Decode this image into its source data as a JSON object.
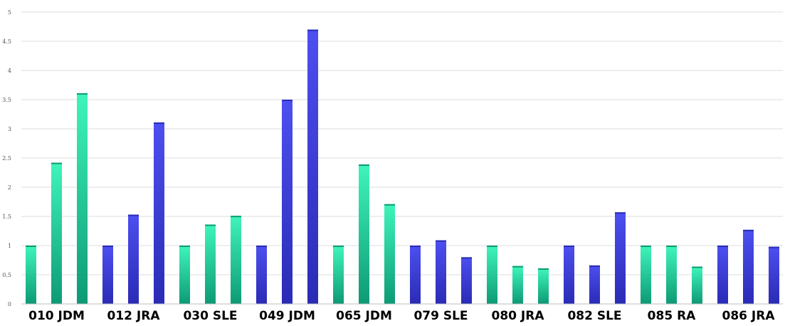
{
  "chart_data": {
    "type": "bar",
    "title": "",
    "xlabel": "",
    "ylabel": "",
    "ylim": [
      0,
      5
    ],
    "yticks": [
      "0",
      "0.5",
      "1",
      "1.5",
      "2",
      "2.5",
      "3",
      "3.5",
      "4",
      "4.5",
      "5"
    ],
    "grid": true,
    "legend": "none",
    "categories": [
      "010 JDM",
      "012 JRA",
      "030 SLE",
      "049 JDM",
      "065 JDM",
      "079 SLE",
      "080 JRA",
      "082 SLE",
      "085 RA",
      "086 JRA"
    ],
    "group_colors": [
      "green",
      "blue",
      "green",
      "blue",
      "green",
      "blue",
      "green",
      "blue",
      "green",
      "blue"
    ],
    "colors": {
      "green_light": "#3ff5bb",
      "green_dark": "#0d9a74",
      "blue_light": "#4d4ff0",
      "blue_dark": "#2a2bb5"
    },
    "series": [
      {
        "values": [
          1,
          1,
          1,
          1,
          1,
          1,
          1,
          1,
          1,
          1
        ]
      },
      {
        "values": [
          2.42,
          1.53,
          1.36,
          3.5,
          2.39,
          1.09,
          0.65,
          0.66,
          1,
          1.27
        ]
      },
      {
        "values": [
          3.61,
          3.11,
          1.51,
          4.7,
          1.71,
          0.8,
          0.61,
          1.57,
          0.64,
          0.98
        ]
      }
    ]
  }
}
